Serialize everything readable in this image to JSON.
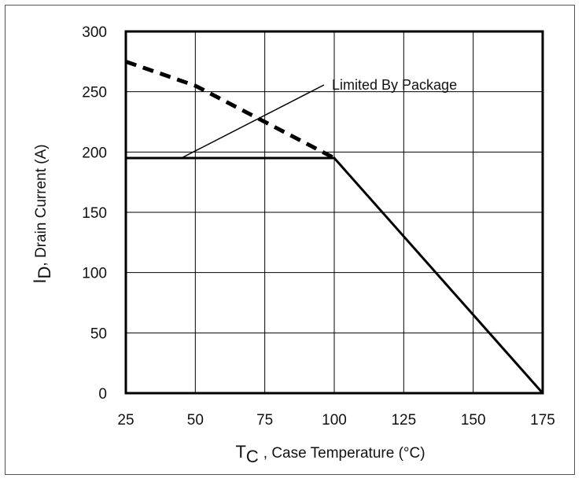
{
  "chart_data": {
    "type": "line",
    "x_ticks": [
      "25",
      "50",
      "75",
      "100",
      "125",
      "150",
      "175"
    ],
    "y_ticks": [
      "0",
      "50",
      "100",
      "150",
      "200",
      "250",
      "300"
    ],
    "xlim": [
      25,
      175
    ],
    "ylim": [
      0,
      300
    ],
    "grid": true,
    "xlabel": {
      "main": "T",
      "sub": "C",
      "rest": ", Case Temperature (°C)"
    },
    "ylabel": {
      "main": "I",
      "sub": "D",
      "rest": ",  Drain Current (A)"
    },
    "series": [
      {
        "style": "solid",
        "x": [
          25,
          100,
          175
        ],
        "y": [
          195,
          195,
          0
        ]
      },
      {
        "style": "dashed",
        "x": [
          25,
          50,
          75,
          100
        ],
        "y": [
          275,
          255,
          225,
          195
        ]
      }
    ],
    "annotation": {
      "text": "Limited By Package",
      "target": [
        45,
        195
      ]
    }
  }
}
